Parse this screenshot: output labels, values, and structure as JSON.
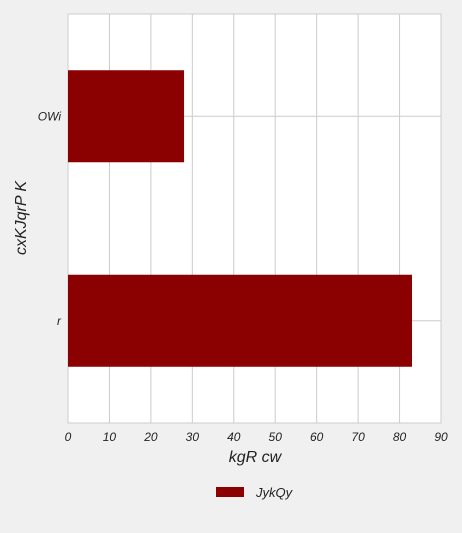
{
  "chart_data": {
    "type": "bar",
    "orientation": "horizontal",
    "categories": [
      "OWi",
      "r"
    ],
    "series": [
      {
        "name": "JykQy",
        "values": [
          28,
          83
        ],
        "color": "#8b0000"
      }
    ],
    "xlabel": "kgR cw",
    "ylabel": "cxKJqrP K",
    "xlim": [
      0,
      90
    ],
    "xticks": [
      0,
      10,
      20,
      30,
      40,
      50,
      60,
      70,
      80,
      90
    ],
    "grid": true,
    "legend_position": "bottom-center",
    "background_color": "#f0f0f0",
    "plot_background_color": "#ffffff",
    "grid_color": "#cccccc"
  }
}
